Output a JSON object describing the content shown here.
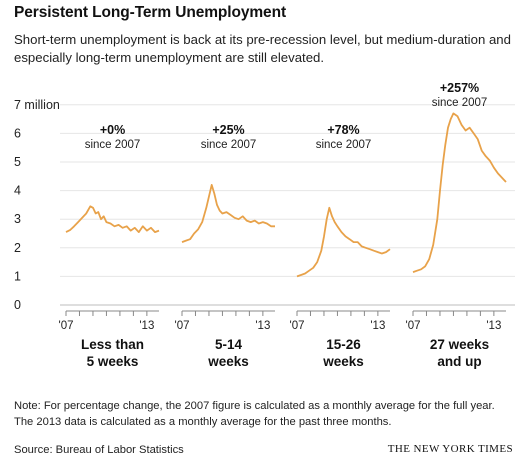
{
  "title": "Persistent Long-Term Unemployment",
  "subtitle": "Short-term unemployment is back at its pre-recession level, but medium-duration and especially long-term unemployment are still elevated.",
  "note": "Note: For percentage change, the 2007 figure is calculated as a monthly average for the full year. The 2013 data is calculated as a monthly average for the past three months.",
  "source": "Source: Bureau of Labor Statistics",
  "credit": "THE NEW YORK TIMES",
  "colors": {
    "line": "#e8a24a",
    "axis": "#888888",
    "grid": "#e6e6e6"
  },
  "chart_data": {
    "type": "line",
    "y_axis": {
      "min": 0,
      "max": 7,
      "ticks": [
        0,
        1,
        2,
        3,
        4,
        5,
        6,
        7
      ],
      "tick_labels": [
        "0",
        "1",
        "2",
        "3",
        "4",
        "5",
        "6",
        "7 million"
      ]
    },
    "x_axis": {
      "range": [
        2007,
        2013.9
      ],
      "tick_labels": [
        "'07",
        "'13"
      ]
    },
    "grid": true,
    "panels": [
      {
        "label": "Less than 5 weeks",
        "label_lines": [
          "Less than",
          "5 weeks"
        ],
        "change": "+0%",
        "change_note": "since 2007",
        "series": [
          [
            2007.0,
            2.55
          ],
          [
            2007.3,
            2.62
          ],
          [
            2007.6,
            2.75
          ],
          [
            2007.9,
            2.9
          ],
          [
            2008.2,
            3.05
          ],
          [
            2008.5,
            3.2
          ],
          [
            2008.8,
            3.45
          ],
          [
            2009.0,
            3.4
          ],
          [
            2009.2,
            3.2
          ],
          [
            2009.4,
            3.25
          ],
          [
            2009.6,
            3.0
          ],
          [
            2009.8,
            3.1
          ],
          [
            2010.0,
            2.9
          ],
          [
            2010.3,
            2.85
          ],
          [
            2010.6,
            2.75
          ],
          [
            2010.9,
            2.8
          ],
          [
            2011.2,
            2.7
          ],
          [
            2011.5,
            2.75
          ],
          [
            2011.8,
            2.6
          ],
          [
            2012.1,
            2.7
          ],
          [
            2012.4,
            2.55
          ],
          [
            2012.7,
            2.75
          ],
          [
            2013.0,
            2.6
          ],
          [
            2013.3,
            2.7
          ],
          [
            2013.6,
            2.55
          ],
          [
            2013.9,
            2.6
          ]
        ]
      },
      {
        "label": "5-14 weeks",
        "label_lines": [
          "5-14",
          "weeks"
        ],
        "change": "+25%",
        "change_note": "since 2007",
        "series": [
          [
            2007.0,
            2.2
          ],
          [
            2007.3,
            2.25
          ],
          [
            2007.6,
            2.3
          ],
          [
            2007.9,
            2.5
          ],
          [
            2008.2,
            2.65
          ],
          [
            2008.5,
            2.9
          ],
          [
            2008.8,
            3.4
          ],
          [
            2009.0,
            3.8
          ],
          [
            2009.2,
            4.2
          ],
          [
            2009.4,
            3.9
          ],
          [
            2009.6,
            3.5
          ],
          [
            2009.8,
            3.3
          ],
          [
            2010.0,
            3.2
          ],
          [
            2010.3,
            3.25
          ],
          [
            2010.6,
            3.15
          ],
          [
            2010.9,
            3.05
          ],
          [
            2011.2,
            3.0
          ],
          [
            2011.5,
            3.1
          ],
          [
            2011.8,
            2.95
          ],
          [
            2012.1,
            2.9
          ],
          [
            2012.4,
            2.95
          ],
          [
            2012.7,
            2.85
          ],
          [
            2013.0,
            2.9
          ],
          [
            2013.3,
            2.85
          ],
          [
            2013.6,
            2.75
          ],
          [
            2013.9,
            2.75
          ]
        ]
      },
      {
        "label": "15-26 weeks",
        "label_lines": [
          "15-26",
          "weeks"
        ],
        "change": "+78%",
        "change_note": "since 2007",
        "series": [
          [
            2007.0,
            1.0
          ],
          [
            2007.3,
            1.05
          ],
          [
            2007.6,
            1.1
          ],
          [
            2007.9,
            1.2
          ],
          [
            2008.2,
            1.3
          ],
          [
            2008.5,
            1.5
          ],
          [
            2008.8,
            1.9
          ],
          [
            2009.0,
            2.4
          ],
          [
            2009.2,
            3.0
          ],
          [
            2009.4,
            3.4
          ],
          [
            2009.6,
            3.1
          ],
          [
            2009.8,
            2.9
          ],
          [
            2010.0,
            2.75
          ],
          [
            2010.3,
            2.55
          ],
          [
            2010.6,
            2.4
          ],
          [
            2010.9,
            2.3
          ],
          [
            2011.2,
            2.2
          ],
          [
            2011.5,
            2.2
          ],
          [
            2011.8,
            2.05
          ],
          [
            2012.1,
            2.0
          ],
          [
            2012.4,
            1.95
          ],
          [
            2012.7,
            1.9
          ],
          [
            2013.0,
            1.85
          ],
          [
            2013.3,
            1.8
          ],
          [
            2013.6,
            1.85
          ],
          [
            2013.9,
            1.95
          ]
        ]
      },
      {
        "label": "27 weeks and up",
        "label_lines": [
          "27 weeks",
          "and up"
        ],
        "change": "+257%",
        "change_note": "since 2007",
        "series": [
          [
            2007.0,
            1.15
          ],
          [
            2007.3,
            1.2
          ],
          [
            2007.6,
            1.25
          ],
          [
            2007.9,
            1.35
          ],
          [
            2008.2,
            1.6
          ],
          [
            2008.5,
            2.1
          ],
          [
            2008.8,
            3.0
          ],
          [
            2009.0,
            4.0
          ],
          [
            2009.2,
            4.9
          ],
          [
            2009.4,
            5.6
          ],
          [
            2009.6,
            6.2
          ],
          [
            2009.8,
            6.5
          ],
          [
            2010.0,
            6.7
          ],
          [
            2010.3,
            6.6
          ],
          [
            2010.6,
            6.3
          ],
          [
            2010.9,
            6.1
          ],
          [
            2011.2,
            6.2
          ],
          [
            2011.5,
            6.0
          ],
          [
            2011.8,
            5.8
          ],
          [
            2012.1,
            5.4
          ],
          [
            2012.4,
            5.2
          ],
          [
            2012.7,
            5.05
          ],
          [
            2013.0,
            4.8
          ],
          [
            2013.3,
            4.6
          ],
          [
            2013.6,
            4.45
          ],
          [
            2013.9,
            4.3
          ]
        ]
      }
    ]
  }
}
